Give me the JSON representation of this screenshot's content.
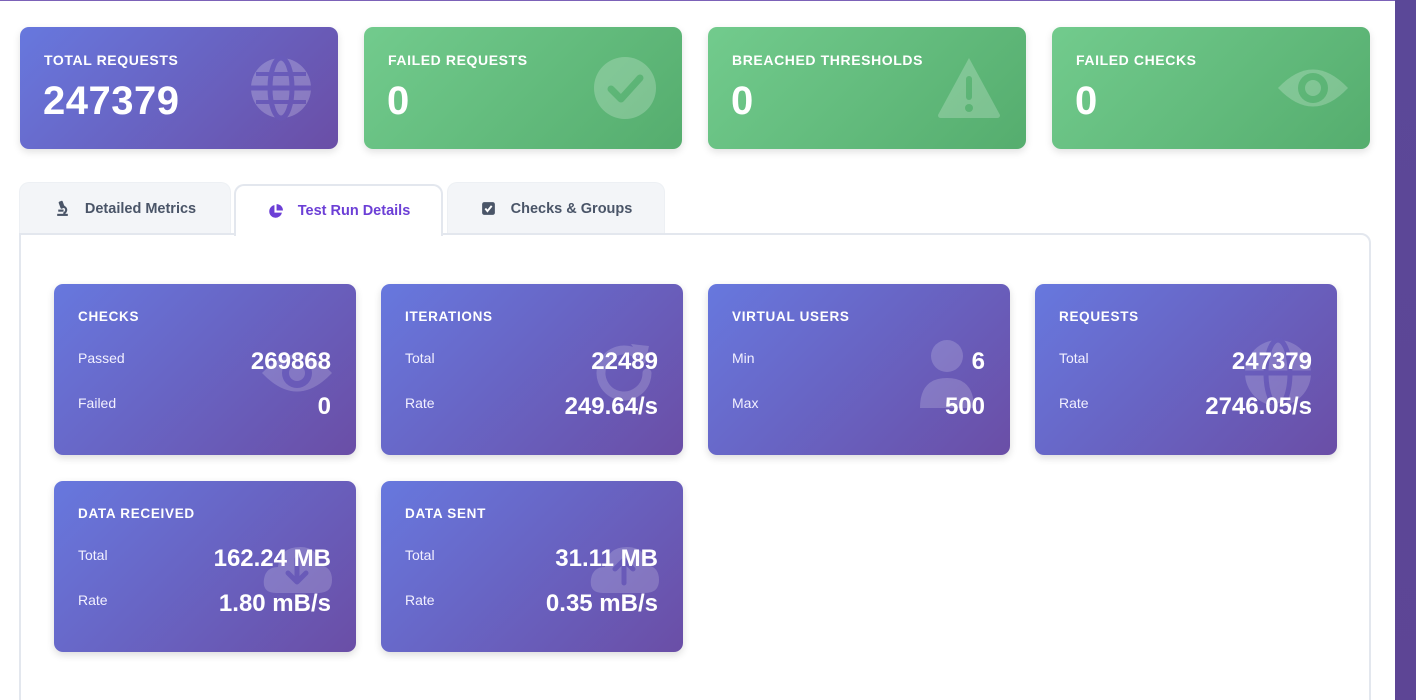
{
  "summary": [
    {
      "label": "TOTAL REQUESTS",
      "value": "247379",
      "icon": "globe-icon",
      "color": "#6a6fd4"
    },
    {
      "label": "FAILED REQUESTS",
      "value": "0",
      "icon": "check-circle-icon",
      "color": "#66be80"
    },
    {
      "label": "BREACHED THRESHOLDS",
      "value": "0",
      "icon": "warning-icon",
      "color": "#66be80"
    },
    {
      "label": "FAILED CHECKS",
      "value": "0",
      "icon": "eye-icon",
      "color": "#66be80"
    }
  ],
  "tabs": [
    {
      "label": "Detailed Metrics",
      "icon": "microscope-icon",
      "active": false
    },
    {
      "label": "Test Run Details",
      "icon": "pie-chart-icon",
      "active": true
    },
    {
      "label": "Checks & Groups",
      "icon": "checkbox-icon",
      "active": false
    }
  ],
  "metrics": [
    {
      "title": "CHECKS",
      "rows": [
        {
          "label": "Passed",
          "value": "269868"
        },
        {
          "label": "Failed",
          "value": "0"
        }
      ],
      "icon": "eye-icon"
    },
    {
      "title": "ITERATIONS",
      "rows": [
        {
          "label": "Total",
          "value": "22489"
        },
        {
          "label": "Rate",
          "value": "249.64/s"
        }
      ],
      "icon": "refresh-icon"
    },
    {
      "title": "VIRTUAL USERS",
      "rows": [
        {
          "label": "Min",
          "value": "6"
        },
        {
          "label": "Max",
          "value": "500"
        }
      ],
      "icon": "user-icon"
    },
    {
      "title": "REQUESTS",
      "rows": [
        {
          "label": "Total",
          "value": "247379"
        },
        {
          "label": "Rate",
          "value": "2746.05/s"
        }
      ],
      "icon": "globe-icon"
    },
    {
      "title": "DATA RECEIVED",
      "rows": [
        {
          "label": "Total",
          "value": "162.24 MB"
        },
        {
          "label": "Rate",
          "value": "1.80 mB/s"
        }
      ],
      "icon": "cloud-download-icon"
    },
    {
      "title": "DATA SENT",
      "rows": [
        {
          "label": "Total",
          "value": "31.11 MB"
        },
        {
          "label": "Rate",
          "value": "0.35 mB/s"
        }
      ],
      "icon": "cloud-upload-icon"
    }
  ],
  "colors": {
    "accent_purple": "#6c3fd6",
    "card_gradient_start": "#6778de",
    "card_gradient_end": "#6a4ea6",
    "success_gradient_start": "#72cb8d",
    "success_gradient_end": "#55ad6e"
  }
}
